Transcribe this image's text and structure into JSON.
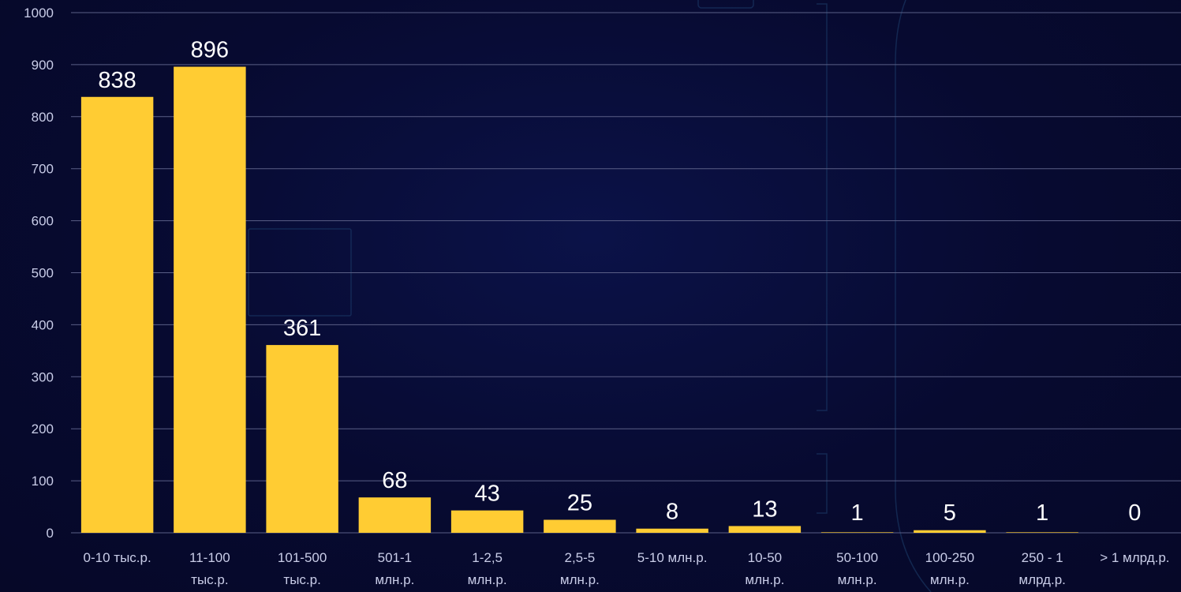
{
  "chart_data": {
    "type": "bar",
    "categories": [
      "0-10 тыс.р.",
      "11-100 тыс.р.",
      "101-500 тыс.р.",
      "501-1 млн.р.",
      "1-2,5 млн.р.",
      "2,5-5 млн.р.",
      "5-10 млн.р.",
      "10-50 млн.р.",
      "50-100 млн.р.",
      "100-250 млн.р.",
      "250 - 1 млрд.р.",
      "> 1 млрд.р."
    ],
    "category_lines": [
      [
        "0-10 тыс.р."
      ],
      [
        "11-100",
        "тыс.р."
      ],
      [
        "101-500",
        "тыс.р."
      ],
      [
        "501-1",
        "млн.р."
      ],
      [
        "1-2,5",
        "млн.р."
      ],
      [
        "2,5-5",
        "млн.р."
      ],
      [
        "5-10 млн.р."
      ],
      [
        "10-50",
        "млн.р."
      ],
      [
        "50-100",
        "млн.р."
      ],
      [
        "100-250",
        "млн.р."
      ],
      [
        "250 - 1",
        "млрд.р."
      ],
      [
        "> 1 млрд.р."
      ]
    ],
    "values": [
      838,
      896,
      361,
      68,
      43,
      25,
      8,
      13,
      1,
      5,
      1,
      0
    ],
    "ylim": [
      0,
      1000
    ],
    "yticks": [
      0,
      100,
      200,
      300,
      400,
      500,
      600,
      700,
      800,
      900,
      1000
    ],
    "grid": true,
    "bar_color": "#ffcc33",
    "title": "",
    "xlabel": "",
    "ylabel": ""
  }
}
